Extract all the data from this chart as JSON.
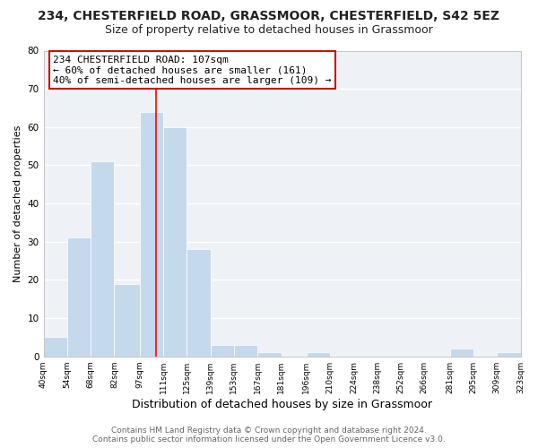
{
  "title1": "234, CHESTERFIELD ROAD, GRASSMOOR, CHESTERFIELD, S42 5EZ",
  "title2": "Size of property relative to detached houses in Grassmoor",
  "xlabel": "Distribution of detached houses by size in Grassmoor",
  "ylabel": "Number of detached properties",
  "bar_edges": [
    40,
    54,
    68,
    82,
    97,
    111,
    125,
    139,
    153,
    167,
    181,
    196,
    210,
    224,
    238,
    252,
    266,
    281,
    295,
    309,
    323
  ],
  "bar_heights": [
    5,
    31,
    51,
    19,
    64,
    60,
    28,
    3,
    3,
    1,
    0,
    1,
    0,
    0,
    0,
    0,
    0,
    2,
    0,
    1,
    0
  ],
  "bar_color": "#c5d9ed",
  "red_line_x": 107,
  "ylim": [
    0,
    80
  ],
  "yticks": [
    0,
    10,
    20,
    30,
    40,
    50,
    60,
    70,
    80
  ],
  "xtick_labels": [
    "40sqm",
    "54sqm",
    "68sqm",
    "82sqm",
    "97sqm",
    "111sqm",
    "125sqm",
    "139sqm",
    "153sqm",
    "167sqm",
    "181sqm",
    "196sqm",
    "210sqm",
    "224sqm",
    "238sqm",
    "252sqm",
    "266sqm",
    "281sqm",
    "295sqm",
    "309sqm",
    "323sqm"
  ],
  "annotation_title": "234 CHESTERFIELD ROAD: 107sqm",
  "annotation_line1": "← 60% of detached houses are smaller (161)",
  "annotation_line2": "40% of semi-detached houses are larger (109) →",
  "footer1": "Contains HM Land Registry data © Crown copyright and database right 2024.",
  "footer2": "Contains public sector information licensed under the Open Government Licence v3.0.",
  "bg_color": "#ffffff",
  "plot_bg_color": "#eef2f7",
  "grid_color": "#ffffff",
  "title1_fontsize": 10,
  "title2_fontsize": 9,
  "annot_fontsize": 8,
  "xlabel_fontsize": 9,
  "ylabel_fontsize": 8,
  "footer_fontsize": 6.5
}
